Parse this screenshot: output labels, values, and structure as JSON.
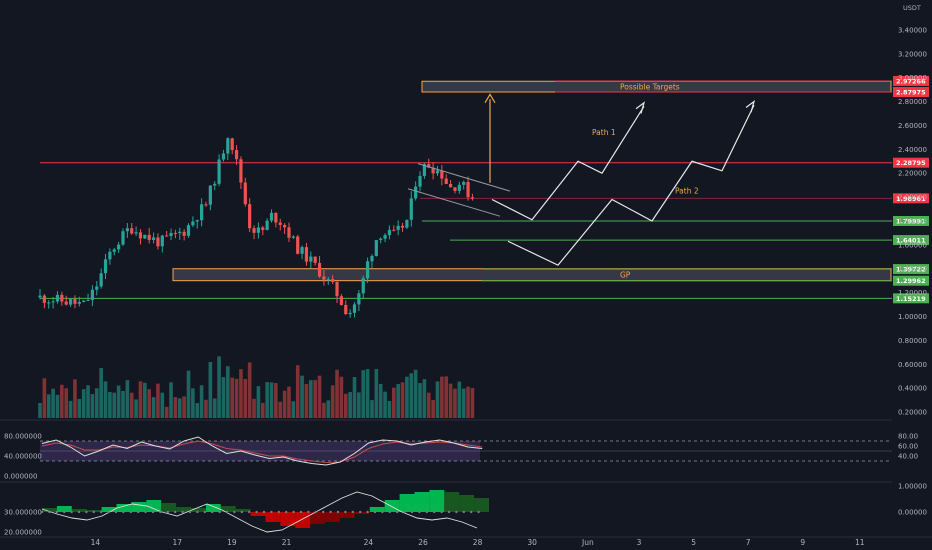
{
  "chart_data": {
    "type": "candlestick",
    "symbol_unit": "USDT",
    "price_axis": {
      "ylim": [
        0.15,
        3.55
      ],
      "ticks": [
        "3.40000",
        "3.20000",
        "3.00000",
        "2.80000",
        "2.60000",
        "2.40000",
        "2.20000",
        "2.00000",
        "1.80000",
        "1.60000",
        "1.40000",
        "1.20000",
        "1.00000",
        "0.80000",
        "0.60000",
        "0.40000",
        "0.20000"
      ]
    },
    "x_axis": {
      "labels": [
        {
          "label": "14",
          "day": 2
        },
        {
          "label": "17",
          "day": 5
        },
        {
          "label": "19",
          "day": 7
        },
        {
          "label": "21",
          "day": 9
        },
        {
          "label": "24",
          "day": 12
        },
        {
          "label": "26",
          "day": 14
        },
        {
          "label": "28",
          "day": 16
        },
        {
          "label": "30",
          "day": 18
        },
        {
          "label": "Jun",
          "day": 20
        },
        {
          "label": "3",
          "day": 22
        },
        {
          "label": "5",
          "day": 24
        },
        {
          "label": "7",
          "day": 26
        },
        {
          "label": "9",
          "day": 28
        },
        {
          "label": "11",
          "day": 30
        }
      ]
    },
    "levels": [
      {
        "price": 2.97266,
        "label": "2.97266",
        "color": "#f23645"
      },
      {
        "price": 2.87975,
        "label": "2.87975",
        "color": "#f23645"
      },
      {
        "price": 2.28795,
        "label": "2.28795",
        "color": "#f23645"
      },
      {
        "price": 1.98961,
        "label": "1.98961",
        "color": "#f23645"
      },
      {
        "price": 1.79991,
        "label": "1.79991",
        "color": "#4caf50"
      },
      {
        "price": 1.64011,
        "label": "1.64011",
        "color": "#4caf50"
      },
      {
        "price": 1.39722,
        "label": "1.39722",
        "color": "#4caf50"
      },
      {
        "price": 1.29962,
        "label": "1.29962",
        "color": "#4caf50"
      },
      {
        "price": 1.15219,
        "label": "1.15219",
        "color": "#4caf50"
      }
    ],
    "zones": [
      {
        "label": "Possible Targets",
        "from_price": 2.88,
        "to_price": 2.97
      },
      {
        "label": "GP",
        "from_price": 1.3,
        "to_price": 1.4
      }
    ],
    "annotations": [
      "Path 1",
      "Path 2"
    ],
    "rsi": {
      "ticks_left": [
        "80.000000",
        "40.000000",
        "0.000000"
      ],
      "ticks_right": [
        "80.00",
        "60.00",
        "40.00"
      ],
      "upper": 70,
      "lower": 30
    },
    "oscillator": {
      "ticks_left": [
        "30.000000",
        "20.000000"
      ],
      "ticks_right": [
        "1.00000",
        "0.00000"
      ]
    }
  }
}
